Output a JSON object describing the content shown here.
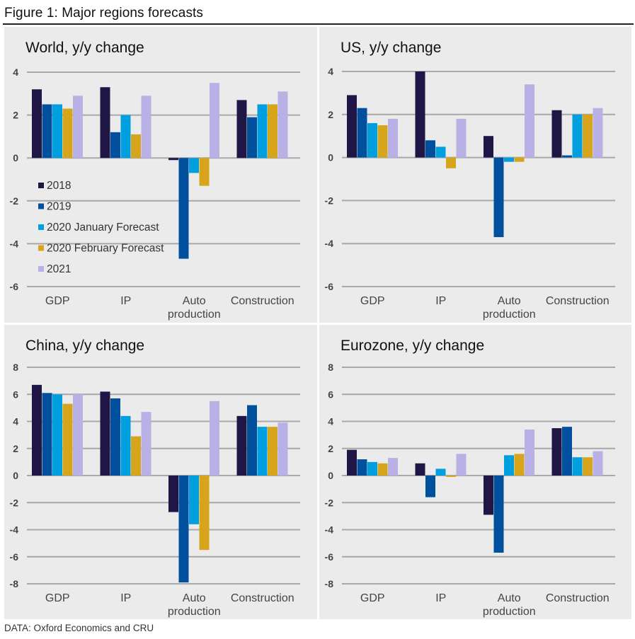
{
  "figure": {
    "title": "Figure 1: Major regions forecasts",
    "source": "DATA: Oxford Economics and CRU"
  },
  "chart_data": [
    {
      "type": "bar",
      "title": "World, y/y change",
      "xlabel": "",
      "ylabel": "",
      "categories": [
        "GDP",
        "IP",
        "Auto production",
        "Construction"
      ],
      "ylim": [
        -6,
        4
      ],
      "yticks": [
        4,
        2,
        0,
        -2,
        -4,
        -6
      ],
      "grid": true,
      "legend": "left",
      "series": [
        {
          "name": "2018",
          "color": "#1f1646",
          "values": [
            3.2,
            3.3,
            -0.1,
            2.7
          ]
        },
        {
          "name": "2019",
          "color": "#00509e",
          "values": [
            2.5,
            1.2,
            -4.7,
            1.9
          ]
        },
        {
          "name": "2020 January Forecast",
          "color": "#009fdf",
          "values": [
            2.5,
            2.0,
            -0.7,
            2.5
          ]
        },
        {
          "name": "2020 February Forecast",
          "color": "#d6a51b",
          "values": [
            2.3,
            1.1,
            -1.3,
            2.5
          ]
        },
        {
          "name": "2021",
          "color": "#b9b0e6",
          "values": [
            2.9,
            2.9,
            3.5,
            3.1
          ]
        }
      ]
    },
    {
      "type": "bar",
      "title": "US, y/y change",
      "xlabel": "",
      "ylabel": "",
      "categories": [
        "GDP",
        "IP",
        "Auto production",
        "Construction"
      ],
      "ylim": [
        -6,
        4
      ],
      "yticks": [
        4,
        2,
        0,
        -2,
        -4,
        -6
      ],
      "grid": true,
      "legend": "none",
      "series": [
        {
          "name": "2018",
          "color": "#1f1646",
          "values": [
            2.9,
            4.0,
            1.0,
            2.2
          ]
        },
        {
          "name": "2019",
          "color": "#00509e",
          "values": [
            2.3,
            0.8,
            -3.7,
            0.1
          ]
        },
        {
          "name": "2020 January Forecast",
          "color": "#009fdf",
          "values": [
            1.6,
            0.5,
            -0.2,
            2.0
          ]
        },
        {
          "name": "2020 February Forecast",
          "color": "#d6a51b",
          "values": [
            1.5,
            -0.5,
            -0.2,
            2.0
          ]
        },
        {
          "name": "2021",
          "color": "#b9b0e6",
          "values": [
            1.8,
            1.8,
            3.4,
            2.3
          ]
        }
      ]
    },
    {
      "type": "bar",
      "title": "China, y/y change",
      "xlabel": "",
      "ylabel": "",
      "categories": [
        "GDP",
        "IP",
        "Auto production",
        "Construction"
      ],
      "ylim": [
        -8,
        8
      ],
      "yticks": [
        8,
        6,
        4,
        2,
        0,
        -2,
        -4,
        -6,
        -8
      ],
      "grid": true,
      "legend": "none",
      "series": [
        {
          "name": "2018",
          "color": "#1f1646",
          "values": [
            6.7,
            6.2,
            -2.7,
            4.4
          ]
        },
        {
          "name": "2019",
          "color": "#00509e",
          "values": [
            6.1,
            5.7,
            -7.9,
            5.2
          ]
        },
        {
          "name": "2020 January Forecast",
          "color": "#009fdf",
          "values": [
            6.0,
            4.4,
            -3.6,
            3.6
          ]
        },
        {
          "name": "2020 February Forecast",
          "color": "#d6a51b",
          "values": [
            5.3,
            2.9,
            -5.5,
            3.6
          ]
        },
        {
          "name": "2021",
          "color": "#b9b0e6",
          "values": [
            6.0,
            4.7,
            5.5,
            3.9
          ]
        }
      ]
    },
    {
      "type": "bar",
      "title": "Eurozone, y/y change",
      "xlabel": "",
      "ylabel": "",
      "categories": [
        "GDP",
        "IP",
        "Auto production",
        "Construction"
      ],
      "ylim": [
        -8,
        8
      ],
      "yticks": [
        8,
        6,
        4,
        2,
        0,
        -2,
        -4,
        -6,
        -8
      ],
      "grid": true,
      "legend": "none",
      "series": [
        {
          "name": "2018",
          "color": "#1f1646",
          "values": [
            1.9,
            0.9,
            -2.9,
            3.5
          ]
        },
        {
          "name": "2019",
          "color": "#00509e",
          "values": [
            1.2,
            -1.6,
            -5.7,
            3.6
          ]
        },
        {
          "name": "2020 January Forecast",
          "color": "#009fdf",
          "values": [
            1.0,
            0.5,
            1.5,
            1.35
          ]
        },
        {
          "name": "2020 February Forecast",
          "color": "#d6a51b",
          "values": [
            0.9,
            -0.1,
            1.6,
            1.35
          ]
        },
        {
          "name": "2021",
          "color": "#b9b0e6",
          "values": [
            1.3,
            1.6,
            3.4,
            1.8
          ]
        }
      ]
    }
  ]
}
